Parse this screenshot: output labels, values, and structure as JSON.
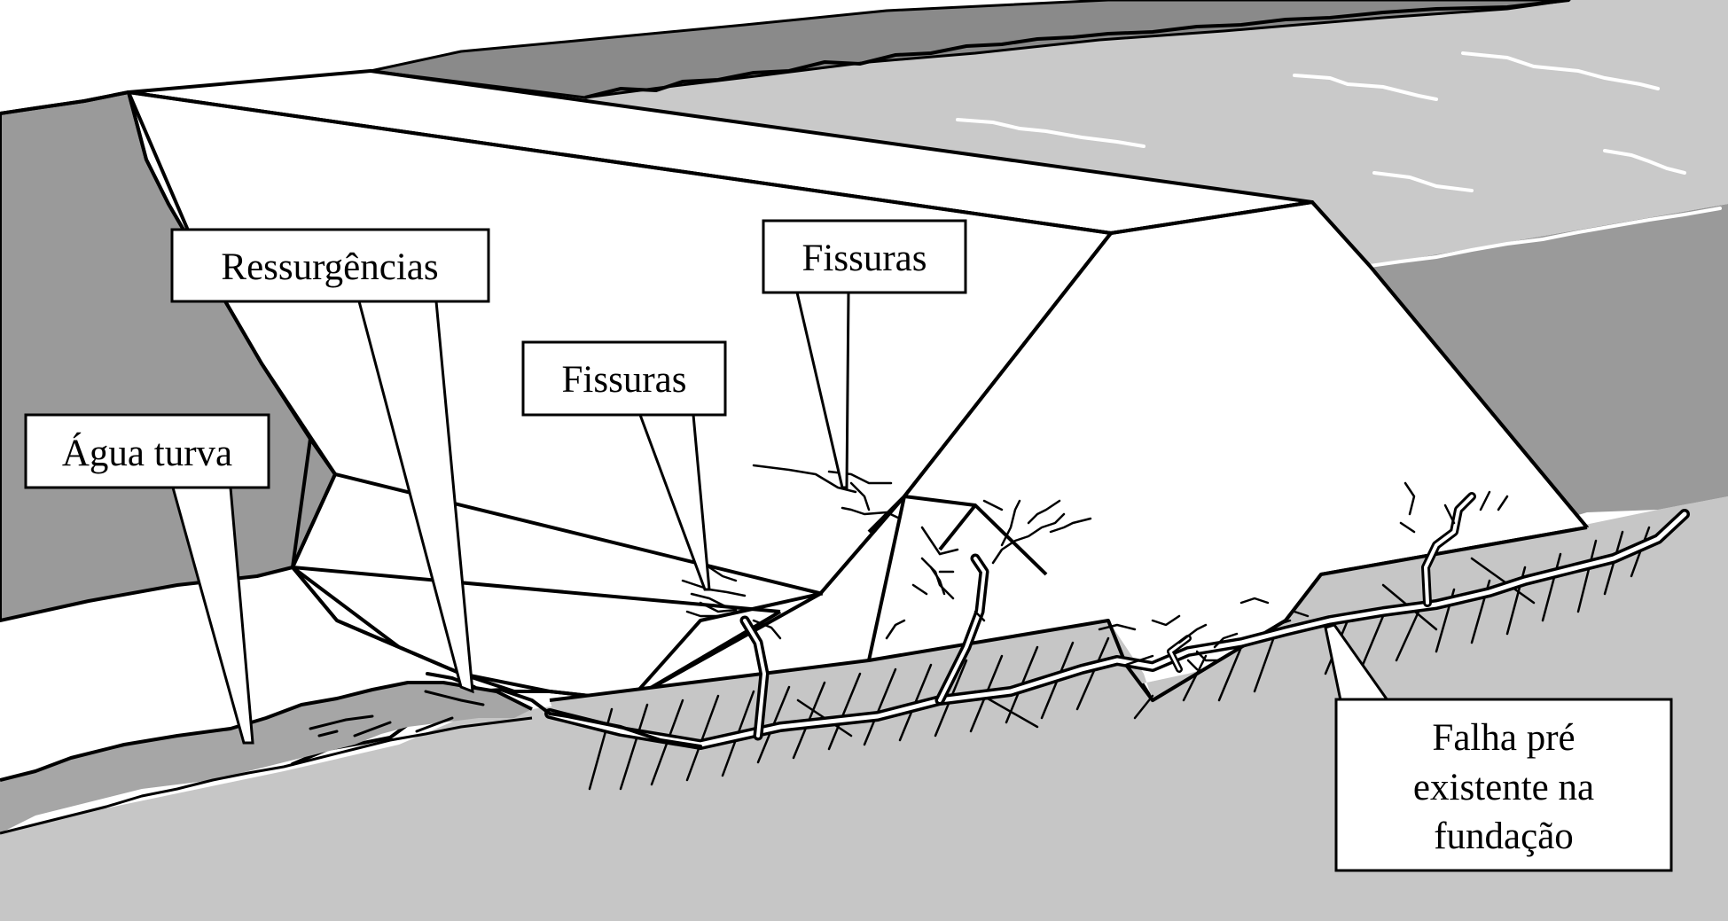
{
  "callouts": {
    "ressurgencias": "Ressurgências",
    "fissuras_upper": "Fissuras",
    "fissuras_lower": "Fissuras",
    "agua_turva": "Água turva",
    "falha_line1": "Falha pré",
    "falha_line2": "existente na",
    "falha_line3": "fundação"
  },
  "colors": {
    "background": "#ffffff",
    "ground": "#c6c6c6",
    "hill": "#9a9a9a",
    "reservoir_water": "#c9c9c9",
    "far_shore": "#8a8a8a",
    "turbid_water": "#a6a6a6",
    "outline": "#000000"
  }
}
